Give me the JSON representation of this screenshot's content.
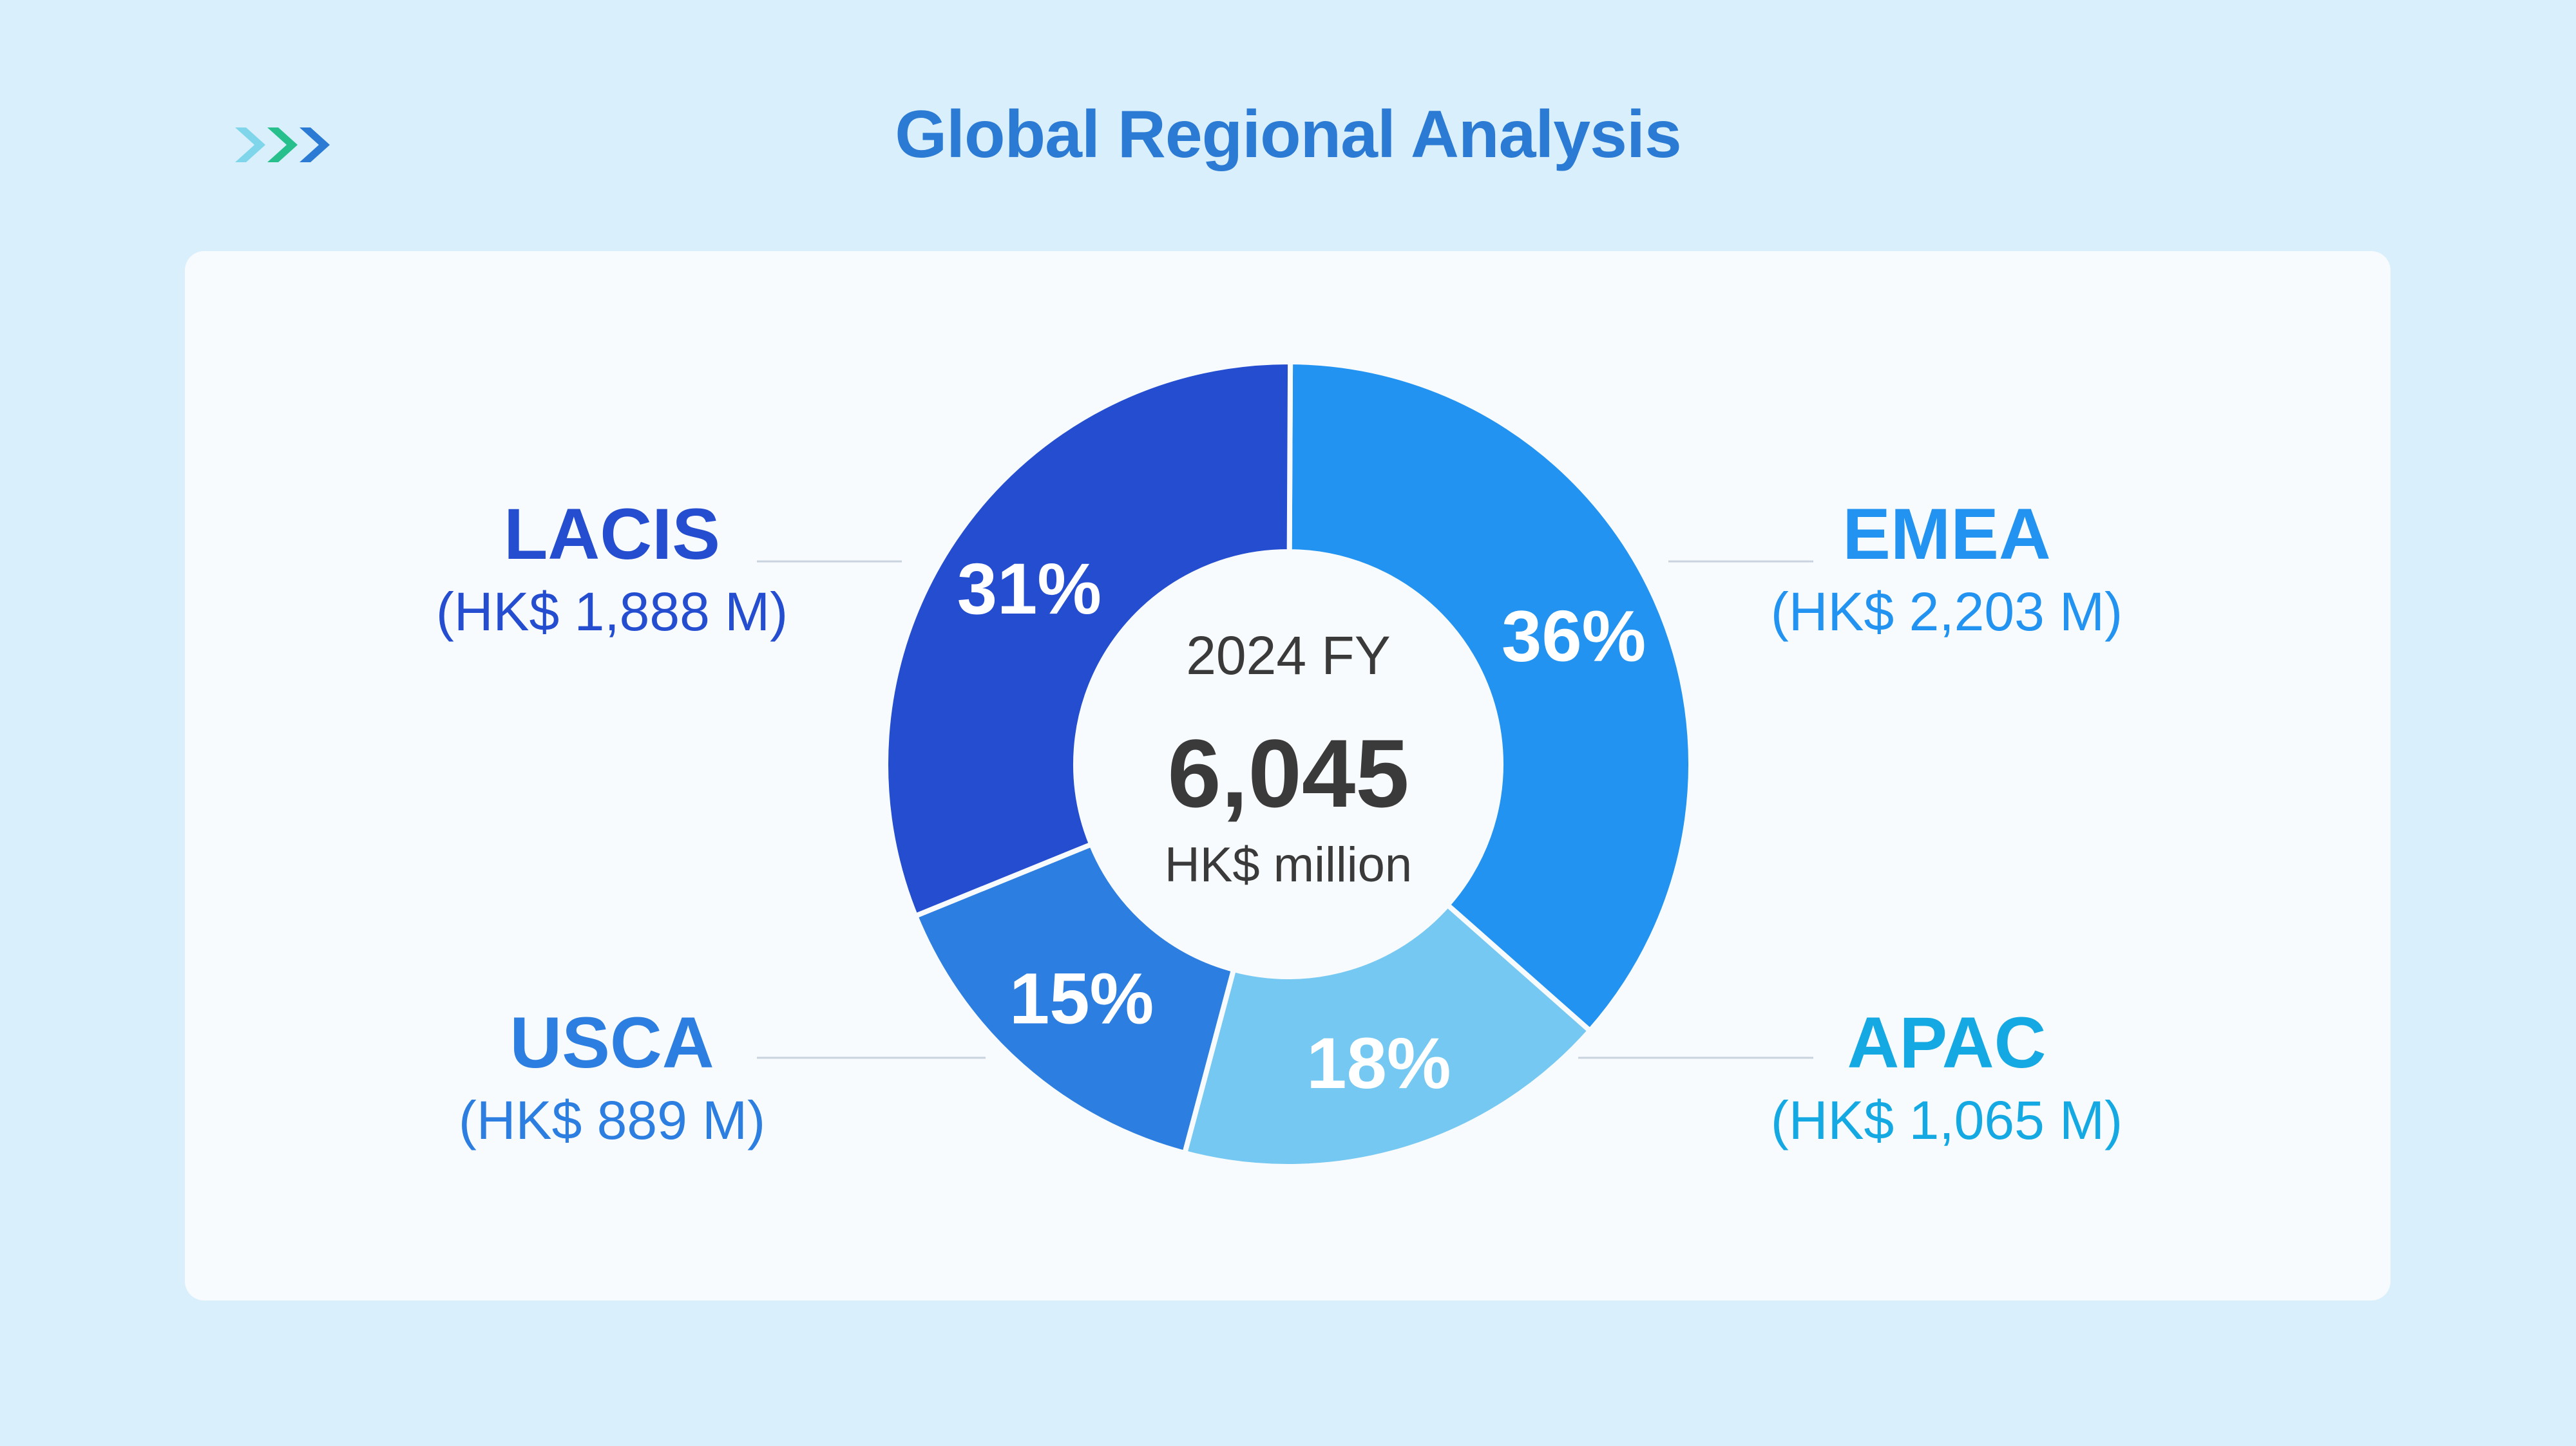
{
  "header": {
    "title": "Global Regional Analysis",
    "icon": "triple-chevron-right-icon"
  },
  "colors": {
    "background": "#d9effc",
    "title": "#2b7bd4",
    "chevrons": [
      "#7fd6ea",
      "#27c08c",
      "#2b7bd4"
    ],
    "lacis": "#244dd0",
    "emea": "#2293f0",
    "apac": "#74c8f1",
    "usca": "#2c7ee0",
    "apac_text": "#14a9e3"
  },
  "chart_data": {
    "type": "pie",
    "variant": "donut",
    "center": {
      "top": "2024 FY",
      "total": "6,045",
      "unit": "HK$ million"
    },
    "slices": [
      {
        "name": "EMEA",
        "value": 2203,
        "percent_label": "36%",
        "amount_label": "(HK$ 2,203 M)",
        "color": "#2293f0"
      },
      {
        "name": "APAC",
        "value": 1065,
        "percent_label": "18%",
        "amount_label": "(HK$ 1,065 M)",
        "color": "#74c8f1"
      },
      {
        "name": "USCA",
        "value": 889,
        "percent_label": "15%",
        "amount_label": "(HK$ 889 M)",
        "color": "#2c7ee0"
      },
      {
        "name": "LACIS",
        "value": 1888,
        "percent_label": "31%",
        "amount_label": "(HK$ 1,888 M)",
        "color": "#244dd0"
      }
    ]
  }
}
